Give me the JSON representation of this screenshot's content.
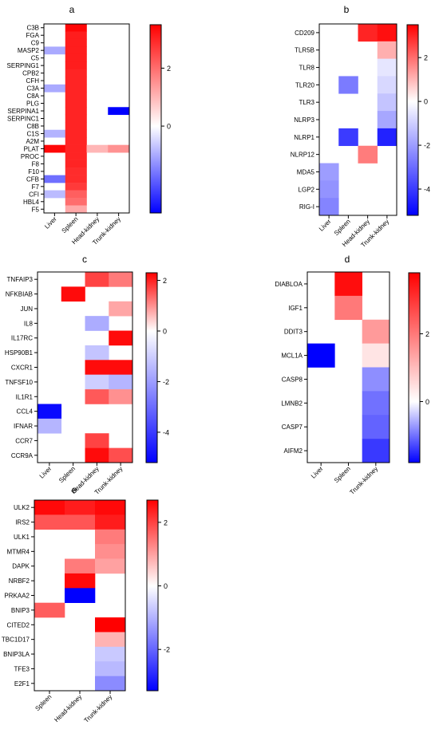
{
  "figure": {
    "panels": [
      {
        "letter": "a"
      },
      {
        "letter": "b"
      },
      {
        "letter": "c"
      },
      {
        "letter": "d"
      },
      {
        "letter": "e"
      }
    ]
  },
  "chart_data": [
    {
      "type": "heatmap",
      "panel": "a",
      "title": "",
      "columns": [
        "Liver",
        "Spleen",
        "Head-kidney",
        "Trunk-kidney"
      ],
      "rows": [
        "C3B",
        "FGA",
        "C9",
        "MASP2",
        "C5",
        "SERPING1",
        "CPB2",
        "CFH",
        "C3A",
        "C8A",
        "PLG",
        "SERPINA1",
        "SERPINC1",
        "C8B",
        "C1S",
        "A2M",
        "PLAT",
        "PROC",
        "F8",
        "F10",
        "CFB",
        "F7",
        "CFI",
        "HBL4",
        "F5"
      ],
      "values": [
        [
          null,
          3.4,
          null,
          null
        ],
        [
          null,
          3.1,
          null,
          null
        ],
        [
          null,
          3.1,
          null,
          null
        ],
        [
          -1.0,
          3.1,
          null,
          null
        ],
        [
          null,
          3.1,
          null,
          null
        ],
        [
          null,
          3.1,
          null,
          null
        ],
        [
          null,
          3.0,
          null,
          null
        ],
        [
          null,
          3.0,
          null,
          null
        ],
        [
          -1.0,
          3.0,
          null,
          null
        ],
        [
          null,
          3.0,
          null,
          null
        ],
        [
          null,
          3.0,
          null,
          null
        ],
        [
          null,
          3.0,
          null,
          -3.0
        ],
        [
          null,
          3.0,
          null,
          null
        ],
        [
          null,
          3.0,
          null,
          null
        ],
        [
          -0.9,
          3.0,
          null,
          null
        ],
        [
          null,
          3.0,
          null,
          null
        ],
        [
          3.4,
          3.0,
          1.0,
          1.5
        ],
        [
          null,
          3.0,
          null,
          null
        ],
        [
          null,
          3.0,
          null,
          null
        ],
        [
          null,
          2.9,
          null,
          null
        ],
        [
          -1.7,
          2.9,
          null,
          null
        ],
        [
          null,
          2.7,
          null,
          null
        ],
        [
          -0.8,
          2.2,
          null,
          null
        ],
        [
          null,
          2.0,
          null,
          null
        ],
        [
          null,
          1.2,
          null,
          null
        ]
      ],
      "colorbar": {
        "min": -3.0,
        "max": 3.5,
        "ticks": [
          0,
          2
        ]
      }
    },
    {
      "type": "heatmap",
      "panel": "b",
      "title": "",
      "columns": [
        "Liver",
        "Spleen",
        "Head-kidney",
        "Trunk-kidney"
      ],
      "rows": [
        "CD209",
        "TLR5B",
        "TLR8",
        "TLR20",
        "TLR3",
        "NLRP3",
        "NLRP1",
        "NLRP12",
        "MDA5",
        "LGP2",
        "RIG-I"
      ],
      "values": [
        [
          null,
          null,
          3.0,
          3.3
        ],
        [
          null,
          null,
          null,
          1.1
        ],
        [
          null,
          null,
          null,
          -0.5
        ],
        [
          null,
          -2.7,
          null,
          -0.8
        ],
        [
          null,
          null,
          null,
          -1.2
        ],
        [
          null,
          null,
          null,
          -1.8
        ],
        [
          null,
          -4.0,
          null,
          -4.5
        ],
        [
          null,
          null,
          1.8,
          null
        ],
        [
          -2.0,
          null,
          null,
          null
        ],
        [
          -2.2,
          null,
          null,
          null
        ],
        [
          -2.5,
          null,
          null,
          null
        ]
      ],
      "colorbar": {
        "min": -5.2,
        "max": 3.5,
        "ticks": [
          2,
          0,
          -2,
          -4
        ]
      }
    },
    {
      "type": "heatmap",
      "panel": "c",
      "title": "",
      "columns": [
        "Liver",
        "Spleen",
        "Head-kidney",
        "Trunk-kidney"
      ],
      "rows": [
        "TNFAIP3",
        "NFKBIAB",
        "JUN",
        "IL8",
        "IL17RC",
        "HSP90B1",
        "CXCR1",
        "TNFSF10",
        "IL1R1",
        "CCL4",
        "IFNAR",
        "CCR7",
        "CCR9A"
      ],
      "values": [
        [
          null,
          null,
          1.7,
          1.2
        ],
        [
          null,
          2.2,
          null,
          null
        ],
        [
          null,
          null,
          null,
          0.8
        ],
        [
          null,
          null,
          -1.7,
          null
        ],
        [
          null,
          null,
          null,
          2.2
        ],
        [
          null,
          null,
          -1.2,
          null
        ],
        [
          null,
          null,
          2.2,
          2.2
        ],
        [
          null,
          null,
          -1.0,
          -1.5
        ],
        [
          null,
          null,
          1.5,
          1.0
        ],
        [
          -5.0,
          null,
          null,
          null
        ],
        [
          -1.5,
          null,
          null,
          null
        ],
        [
          null,
          null,
          1.7,
          null
        ],
        [
          null,
          null,
          2.2,
          1.6
        ]
      ],
      "colorbar": {
        "min": -5.2,
        "max": 2.3,
        "ticks": [
          2,
          0,
          -2,
          -4
        ]
      }
    },
    {
      "type": "heatmap",
      "panel": "d",
      "title": "",
      "columns": [
        "Liver",
        "Spleen",
        "Trunk-kidney"
      ],
      "rows": [
        "DIABLOA",
        "IGF1",
        "DDIT3",
        "MCL1A",
        "CASP8",
        "LMNB2",
        "CASP7",
        "AIFM2"
      ],
      "values": [
        [
          null,
          3.6,
          null
        ],
        [
          null,
          2.0,
          null
        ],
        [
          null,
          null,
          1.5
        ],
        [
          -1.8,
          null,
          0.4
        ],
        [
          null,
          null,
          -0.8
        ],
        [
          null,
          null,
          -1.0
        ],
        [
          null,
          null,
          -1.1
        ],
        [
          null,
          null,
          -1.4
        ]
      ],
      "colorbar": {
        "min": -1.8,
        "max": 3.8,
        "ticks": [
          2,
          0
        ]
      }
    },
    {
      "type": "heatmap",
      "panel": "e",
      "title": "",
      "columns": [
        "Spleen",
        "Head-kidney",
        "Trunk-kidney"
      ],
      "rows": [
        "ULK2",
        "IRS2",
        "ULK1",
        "MTMR4",
        "DAPK",
        "NRBF2",
        "PRKAA2",
        "BNIP3",
        "CITED2",
        "TBC1D17",
        "BNIP3LA",
        "TFE3",
        "E2F1"
      ],
      "values": [
        [
          2.6,
          2.4,
          2.6
        ],
        [
          1.8,
          1.8,
          2.4
        ],
        [
          null,
          null,
          1.4
        ],
        [
          null,
          null,
          1.2
        ],
        [
          null,
          1.4,
          1.0
        ],
        [
          null,
          2.6,
          null
        ],
        [
          null,
          -3.3,
          null
        ],
        [
          1.7,
          null,
          null
        ],
        [
          null,
          null,
          2.8
        ],
        [
          null,
          null,
          0.8
        ],
        [
          null,
          null,
          -0.7
        ],
        [
          null,
          null,
          -0.9
        ],
        [
          null,
          null,
          -1.5
        ]
      ],
      "colorbar": {
        "min": -3.3,
        "max": 2.7,
        "ticks": [
          2,
          0,
          -2
        ]
      }
    }
  ]
}
